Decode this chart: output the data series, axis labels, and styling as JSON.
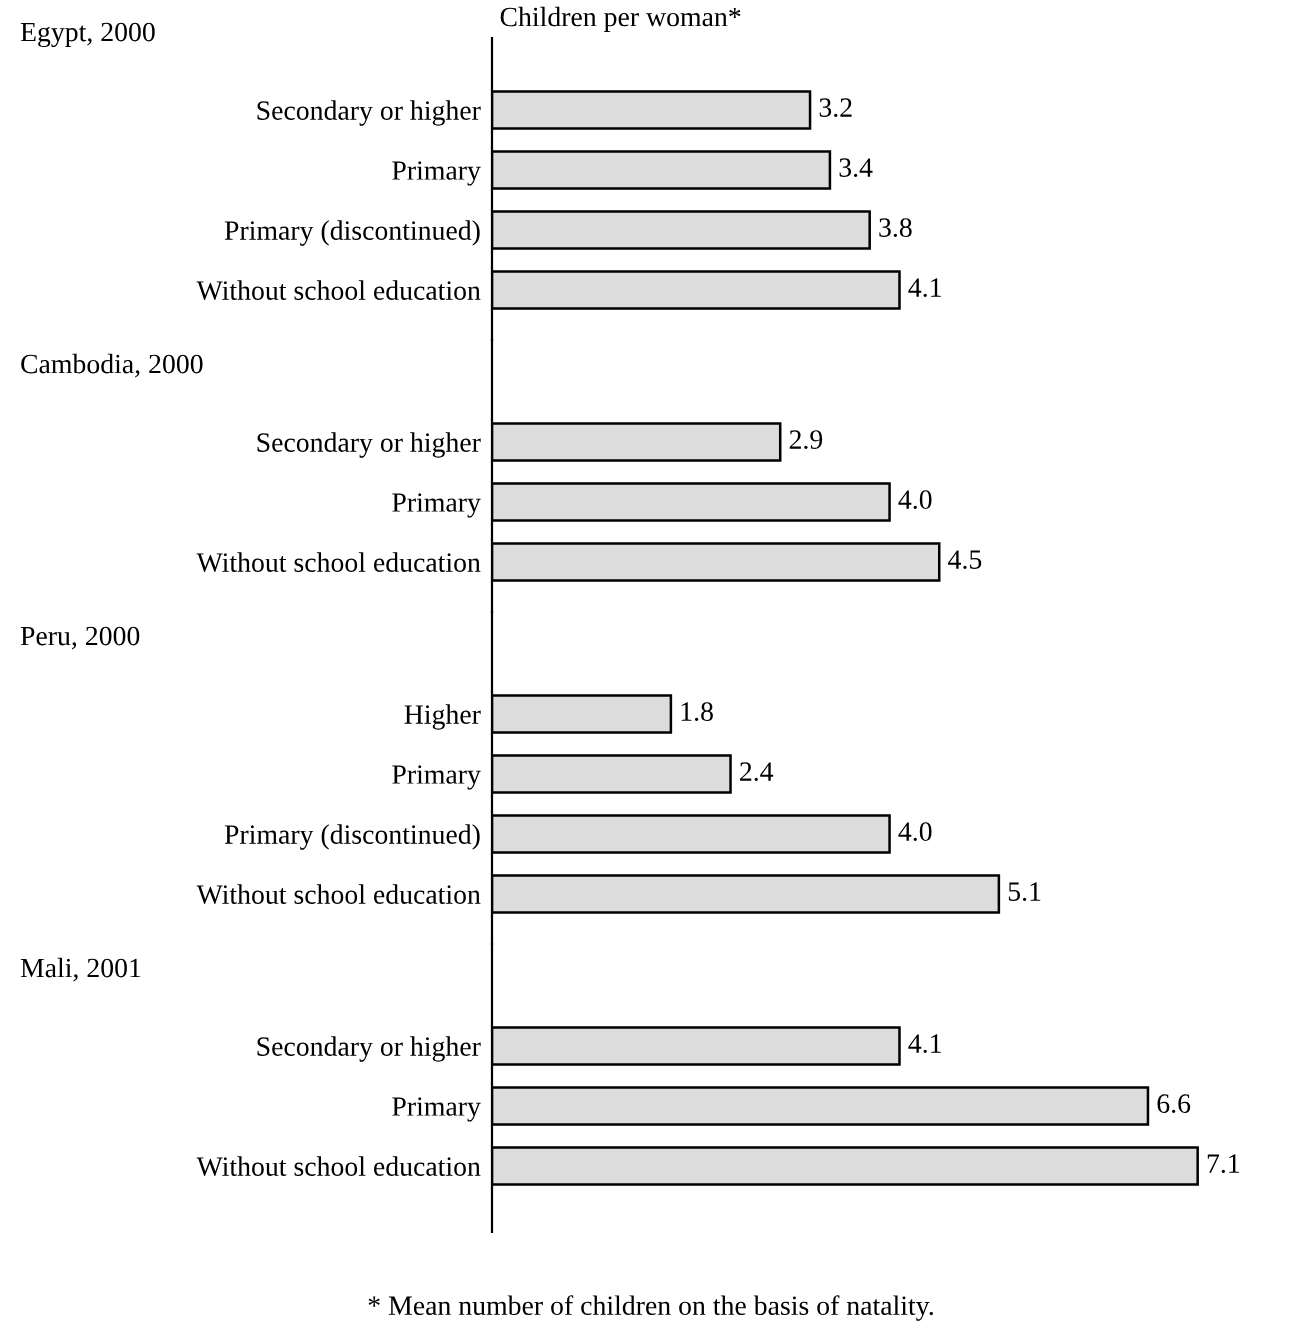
{
  "chart_data": [
    {
      "type": "bar",
      "orientation": "horizontal",
      "title": "Egypt, 2000",
      "xlabel": "Children per woman*",
      "categories": [
        "Secondary or higher",
        "Primary",
        "Primary (discontinued)",
        "Without school education"
      ],
      "values": [
        3.2,
        3.4,
        3.8,
        4.1
      ],
      "value_labels": [
        "3.2",
        "3.4",
        "3.8",
        "4.1"
      ],
      "color": "#dcdcdc",
      "tick_labels": "y",
      "grid": false,
      "legend": false
    },
    {
      "type": "bar",
      "orientation": "horizontal",
      "title": "Cambodia, 2000",
      "categories": [
        "Secondary or higher",
        "Primary",
        "Without school education"
      ],
      "values": [
        2.9,
        4.0,
        4.5
      ],
      "value_labels": [
        "2.9",
        "4.0",
        "4.5"
      ],
      "color": "#dcdcdc",
      "tick_labels": "y",
      "grid": false,
      "legend": false
    },
    {
      "type": "bar",
      "orientation": "horizontal",
      "title": "Peru, 2000",
      "categories": [
        "Higher",
        "Primary",
        "Primary (discontinued)",
        "Without school education"
      ],
      "values": [
        1.8,
        2.4,
        4.0,
        5.1
      ],
      "value_labels": [
        "1.8",
        "2.4",
        "4.0",
        "5.1"
      ],
      "color": "#dcdcdc",
      "tick_labels": "y",
      "grid": false,
      "legend": false
    },
    {
      "type": "bar",
      "orientation": "horizontal",
      "title": "Mali, 2001",
      "categories": [
        "Secondary or higher",
        "Primary",
        "Without school education"
      ],
      "values": [
        4.1,
        6.6,
        7.1
      ],
      "value_labels": [
        "4.1",
        "6.6",
        "7.1"
      ],
      "color": "#dcdcdc",
      "tick_labels": "y",
      "grid": false,
      "legend": false,
      "annotations": [
        "* Mean number of children on the basis of natality."
      ]
    }
  ]
}
